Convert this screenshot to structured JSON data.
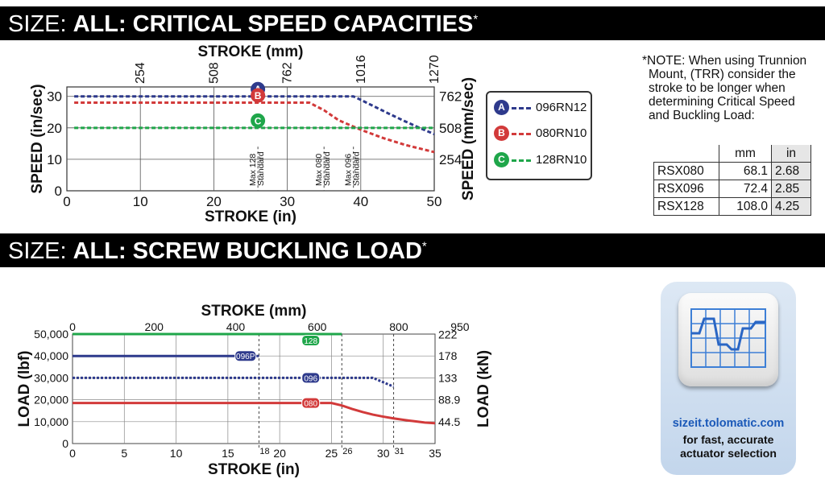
{
  "section1": {
    "light": "SIZE: ",
    "bold": "ALL: CRITICAL SPEED CAPACITIES",
    "mark": "*"
  },
  "section2": {
    "light": "SIZE: ",
    "bold": "ALL: SCREW BUCKLING LOAD",
    "mark": "*"
  },
  "note": {
    "lines": [
      "*NOTE: When using Trunnion",
      "Mount, (TRR) consider the",
      "stroke to be longer when",
      "determining Critical Speed",
      "and Buckling Load:"
    ],
    "header": [
      "",
      "mm",
      "in"
    ],
    "rows": [
      [
        "RSX080",
        "68.1",
        "2.68"
      ],
      [
        "RSX096",
        "72.4",
        "2.85"
      ],
      [
        "RSX128",
        "108.0",
        "4.25"
      ]
    ]
  },
  "legend": [
    {
      "badge": "A",
      "label": "096RN12",
      "color": "#2e3a8c"
    },
    {
      "badge": "B",
      "label": "080RN10",
      "color": "#d23a3a"
    },
    {
      "badge": "C",
      "label": "128RN10",
      "color": "#1fa64a"
    }
  ],
  "promo": {
    "url": "sizeit.tolomatic.com",
    "tag": [
      "for fast, accurate",
      "actuator selection"
    ]
  },
  "chart_data": [
    {
      "type": "line",
      "title": "",
      "xlabel": "STROKE (in)",
      "x2label": "STROKE (mm)",
      "ylabel": "SPEED (in/sec)",
      "y2label": "SPEED (mm/sec)",
      "xlim": [
        0,
        50
      ],
      "ylim": [
        0,
        33
      ],
      "xticks": [
        "0",
        "10",
        "20",
        "30",
        "40",
        "50"
      ],
      "yticks": [
        "0",
        "10",
        "20",
        "30"
      ],
      "x2ticks": [
        "254",
        "508",
        "762",
        "1016",
        "1270"
      ],
      "y2ticks": [
        "254",
        "508",
        "762"
      ],
      "grid": true,
      "series": [
        {
          "name": "096RN12",
          "badge": "A",
          "color": "#2e3a8c",
          "x": [
            1,
            39,
            40,
            42,
            44,
            46,
            48,
            50
          ],
          "y": [
            30,
            30,
            28.9,
            26.6,
            24.3,
            22.1,
            20,
            18
          ]
        },
        {
          "name": "080RN10",
          "badge": "B",
          "color": "#d23a3a",
          "x": [
            1,
            33,
            35,
            37,
            40,
            43,
            46,
            50
          ],
          "y": [
            28,
            28,
            25.6,
            22.4,
            19.4,
            16.8,
            14.6,
            12.3
          ]
        },
        {
          "name": "128RN10",
          "badge": "C",
          "color": "#1fa64a",
          "x": [
            1,
            50
          ],
          "y": [
            20,
            20
          ]
        }
      ],
      "annotations": [
        {
          "label": [
            "Max 128",
            "Standard"
          ],
          "x": 26
        },
        {
          "label": [
            "Max 080",
            "Standard"
          ],
          "x": 35
        },
        {
          "label": [
            "Max 096",
            "Standard"
          ],
          "x": 39
        }
      ]
    },
    {
      "type": "line",
      "title": "",
      "xlabel": "STROKE (in)",
      "x2label": "STROKE (mm)",
      "ylabel": "LOAD (lbf)",
      "y2label": "LOAD (kN)",
      "xlim": [
        0,
        35
      ],
      "ylim": [
        0,
        50000
      ],
      "xticks": [
        "0",
        "5",
        "10",
        "15",
        "20",
        "25",
        "30",
        "35"
      ],
      "x2ticks": [
        "0",
        "200",
        "400",
        "600",
        "800",
        "950"
      ],
      "yticks": [
        "0",
        "10,000",
        "20,000",
        "30,000",
        "40,000",
        "50,000"
      ],
      "y2ticks": [
        "44.5",
        "88.9",
        "133",
        "178",
        "222"
      ],
      "extra_xticks": [
        "18",
        "26",
        "31"
      ],
      "grid": true,
      "series": [
        {
          "name": "128",
          "color": "#1fa64a",
          "style": "solid",
          "x": [
            0,
            26
          ],
          "y": [
            50000,
            50000
          ]
        },
        {
          "name": "096P",
          "color": "#2e3a8c",
          "style": "solid",
          "x": [
            0,
            18
          ],
          "y": [
            40000,
            40000
          ]
        },
        {
          "name": "096",
          "color": "#2e3a8c",
          "style": "dotted",
          "x": [
            0,
            29,
            30,
            31
          ],
          "y": [
            30000,
            30000,
            28000,
            26000
          ]
        },
        {
          "name": "080",
          "color": "#d23a3a",
          "style": "solid",
          "x": [
            0,
            25,
            26,
            27,
            28,
            29,
            30,
            31,
            32,
            33,
            34,
            35
          ],
          "y": [
            18500,
            18500,
            17400,
            15800,
            14400,
            13200,
            12300,
            11500,
            10800,
            10200,
            9600,
            9300
          ]
        }
      ],
      "annotations": [
        {
          "label": "18",
          "x": 18
        },
        {
          "label": "26",
          "x": 26
        },
        {
          "label": "31",
          "x": 31
        }
      ]
    }
  ]
}
